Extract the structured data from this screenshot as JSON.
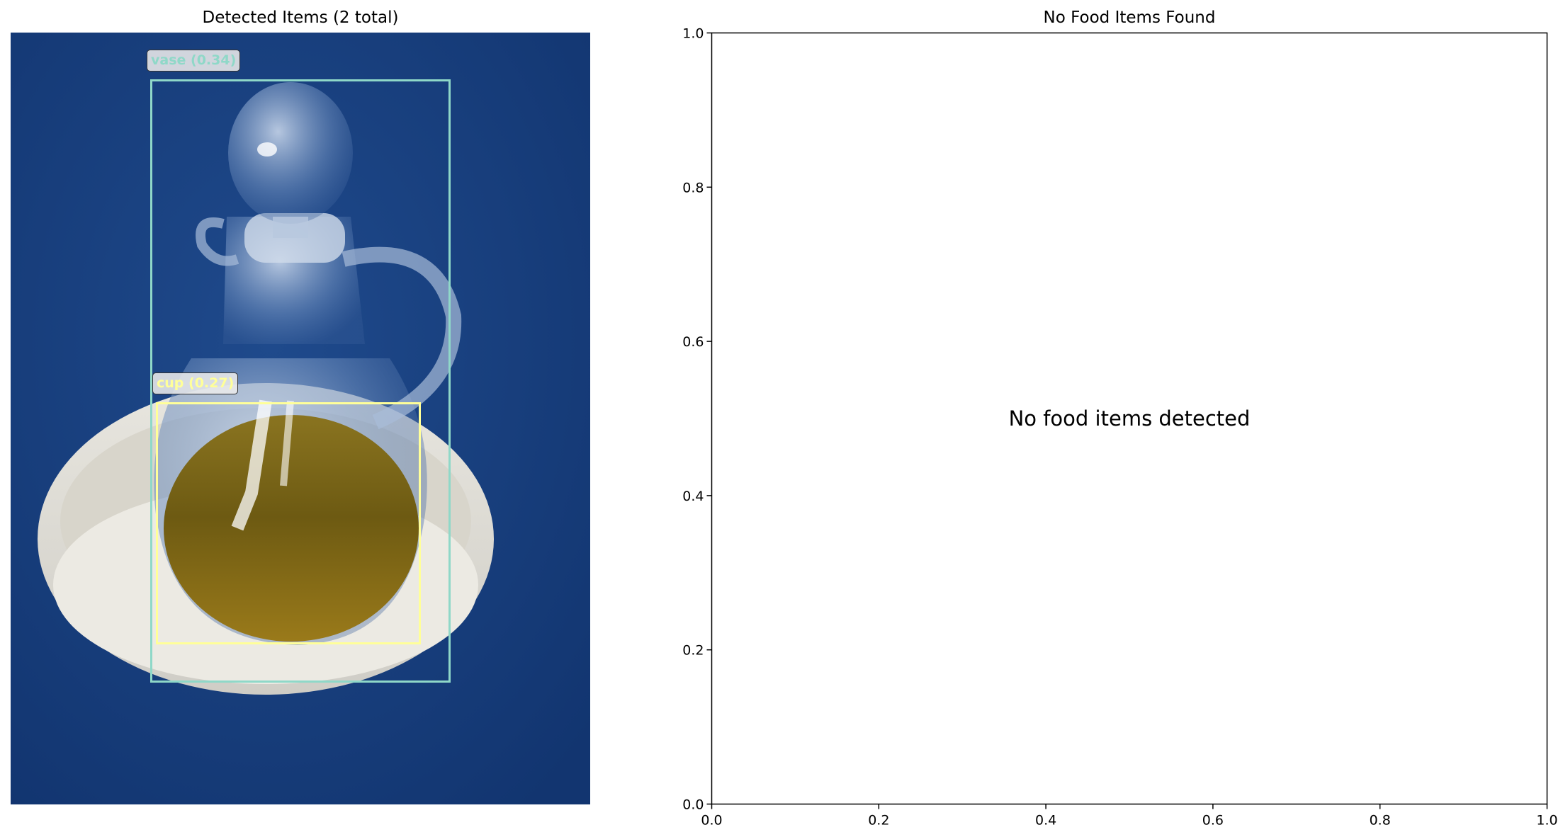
{
  "left_panel": {
    "title": "Detected Items (2 total)",
    "detections": [
      {
        "label": "vase (0.34)",
        "color": "#8fd8c8"
      },
      {
        "label": "cup (0.27)",
        "color": "#ffff99"
      }
    ]
  },
  "chart_data": {
    "type": "scatter",
    "title": "No Food Items Found",
    "xlabel": "",
    "ylabel": "",
    "xlim": [
      0,
      1
    ],
    "ylim": [
      0,
      1
    ],
    "x_ticks": [
      "0.0",
      "0.2",
      "0.4",
      "0.6",
      "0.8",
      "1.0"
    ],
    "y_ticks": [
      "0.0",
      "0.2",
      "0.4",
      "0.6",
      "0.8",
      "1.0"
    ],
    "series": [],
    "annotation": {
      "text": "No food items detected",
      "x": 0.5,
      "y": 0.5
    },
    "grid": false
  }
}
